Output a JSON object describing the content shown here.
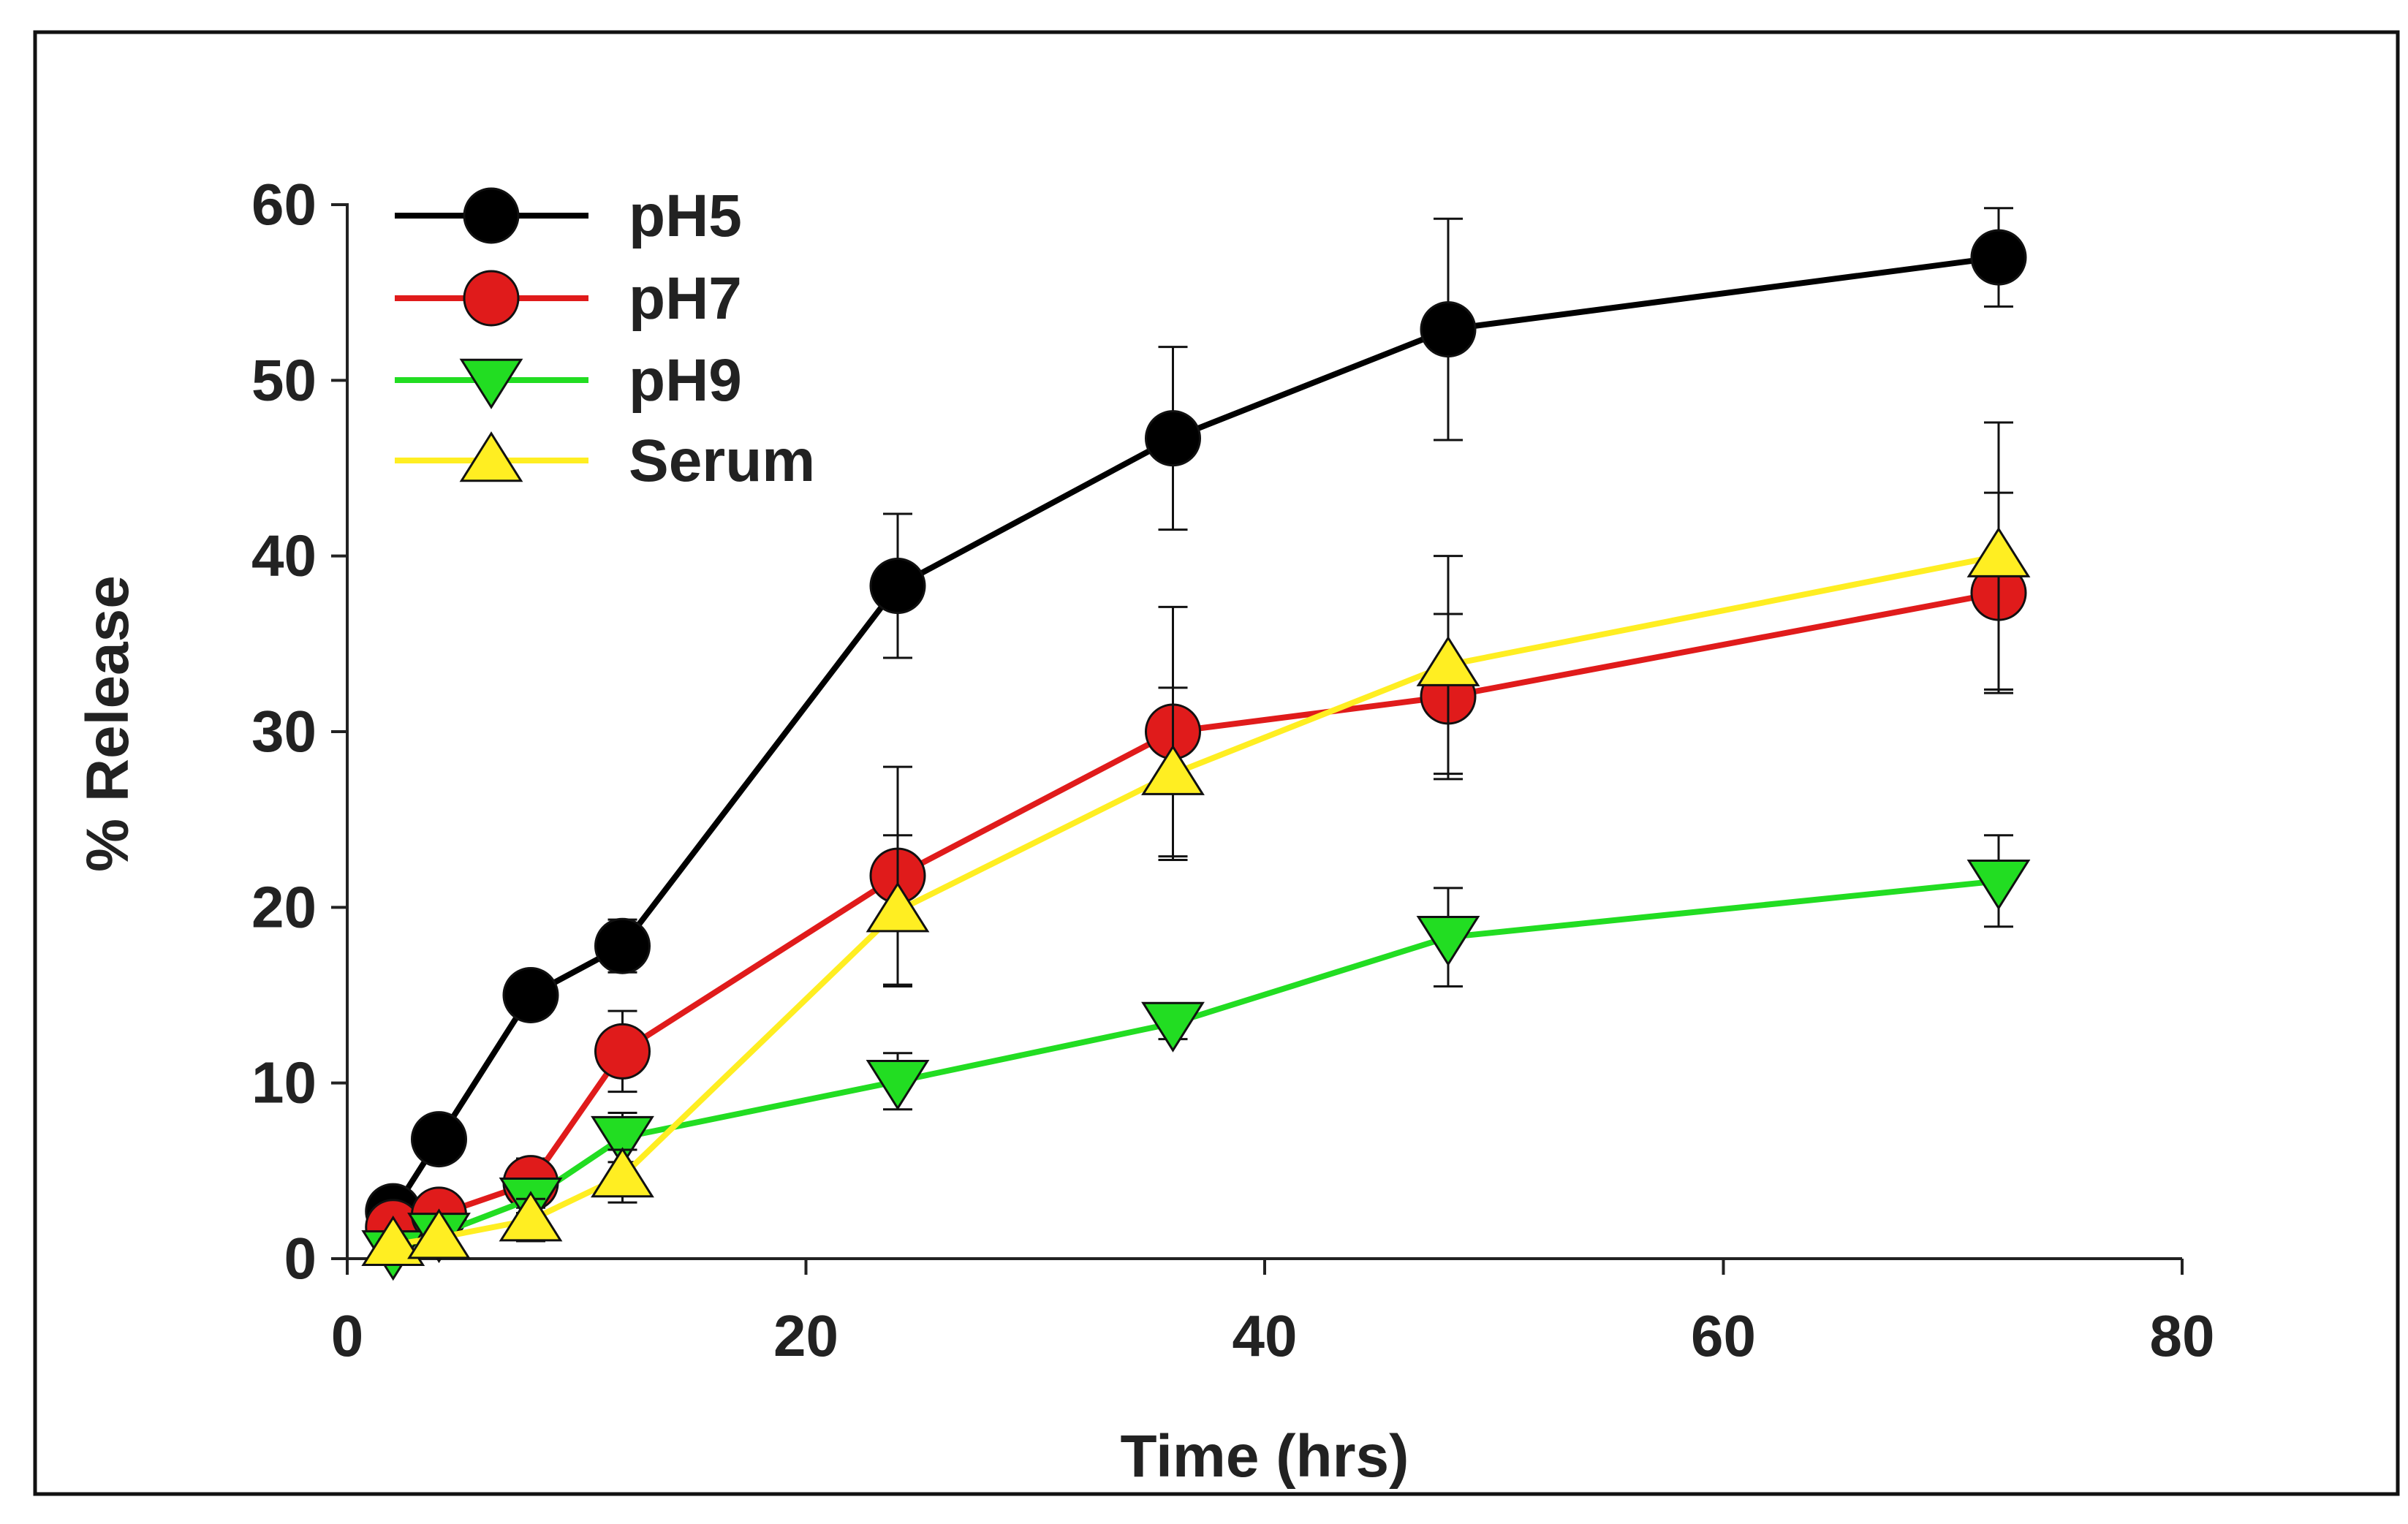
{
  "chart_data": {
    "type": "line",
    "title": "",
    "xlabel": "Time (hrs)",
    "ylabel": "% Release",
    "xlim": [
      0,
      80
    ],
    "ylim": [
      0,
      60
    ],
    "xticks": [
      0,
      20,
      40,
      60,
      80
    ],
    "yticks": [
      0,
      10,
      20,
      30,
      40,
      50,
      60
    ],
    "xtick_labels": [
      "0",
      "20",
      "40",
      "60",
      "80"
    ],
    "ytick_labels": [
      "0",
      "10",
      "20",
      "30",
      "40",
      "50",
      "60"
    ],
    "grid": false,
    "legend_position": "top-left",
    "series": [
      {
        "name": "pH5",
        "color": "#000000",
        "marker": "circle",
        "x": [
          2,
          4,
          8,
          12,
          24,
          36,
          48,
          72
        ],
        "y": [
          2.7,
          6.8,
          15.0,
          17.8,
          38.3,
          46.7,
          52.9,
          57.0
        ],
        "err": [
          0.5,
          0.6,
          0.6,
          1.5,
          4.1,
          5.2,
          6.3,
          2.8
        ]
      },
      {
        "name": "pH7",
        "color": "#e01b1b",
        "marker": "circle",
        "x": [
          2,
          4,
          8,
          12,
          24,
          36,
          48,
          72
        ],
        "y": [
          1.8,
          2.5,
          4.3,
          11.8,
          21.8,
          30.0,
          32.0,
          37.9
        ],
        "err": [
          0.5,
          0.5,
          1.4,
          2.3,
          6.2,
          7.1,
          4.7,
          5.7
        ]
      },
      {
        "name": "pH9",
        "color": "#22dd22",
        "marker": "triangle-down",
        "x": [
          2,
          4,
          8,
          12,
          24,
          36,
          48,
          72
        ],
        "y": [
          0.4,
          1.4,
          3.4,
          6.9,
          10.1,
          13.4,
          18.3,
          21.5
        ],
        "err": [
          0.3,
          0.4,
          0.8,
          1.4,
          1.6,
          0.9,
          2.8,
          2.6
        ]
      },
      {
        "name": "Serum",
        "color": "#ffee22",
        "marker": "triangle-up",
        "x": [
          2,
          4,
          8,
          12,
          24,
          36,
          48,
          72
        ],
        "y": [
          0.8,
          1.2,
          2.2,
          4.7,
          19.8,
          27.6,
          33.8,
          40.0
        ],
        "err": [
          0.3,
          0.3,
          1.2,
          1.5,
          4.3,
          4.9,
          6.2,
          7.6
        ]
      }
    ]
  }
}
